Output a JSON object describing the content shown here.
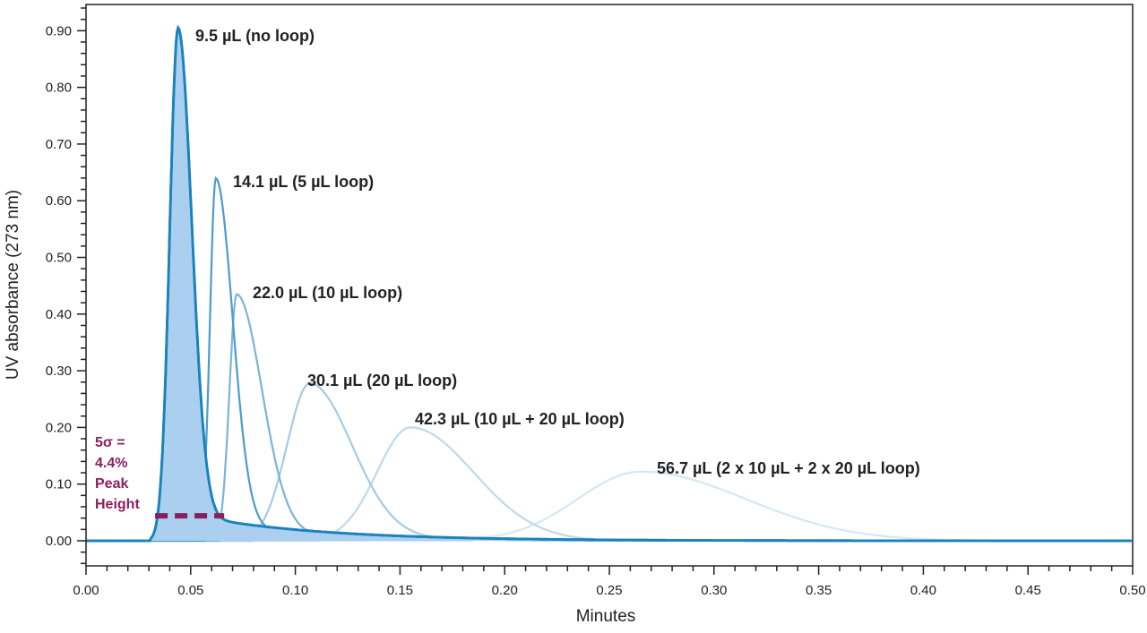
{
  "chart_data": {
    "type": "line",
    "title": "",
    "xlabel": "Minutes",
    "ylabel": "UV absorbance (273 nm)",
    "xlim": [
      0,
      0.5
    ],
    "ylim": [
      -0.04,
      0.96
    ],
    "x_ticks": [
      "0.00",
      "0.05",
      "0.10",
      "0.15",
      "0.20",
      "0.25",
      "0.30",
      "0.35",
      "0.40",
      "0.45",
      "0.50"
    ],
    "y_ticks": [
      "0.00",
      "0.10",
      "0.20",
      "0.30",
      "0.40",
      "0.50",
      "0.60",
      "0.70",
      "0.80",
      "0.90"
    ],
    "grid": false,
    "series": [
      {
        "name": "9.5 µL (no loop)",
        "peak_time": 0.044,
        "peak_height": 0.905,
        "start": 0.031,
        "sigma_left": 0.004,
        "sigma_right": 0.0065,
        "tail_amp": 0.05,
        "tail_tau": 0.06,
        "color": "#1a82bd",
        "filled": true
      },
      {
        "name": "14.1 µL (5 µL loop)",
        "peak_time": 0.062,
        "peak_height": 0.64,
        "start": 0.057,
        "sigma_left": 0.0028,
        "sigma_right": 0.008,
        "tail_amp": 0.03,
        "tail_tau": 0.05,
        "color": "#4a9cce"
      },
      {
        "name": "22.0 µL (10 µL loop)",
        "peak_time": 0.072,
        "peak_height": 0.435,
        "start": 0.064,
        "sigma_left": 0.0035,
        "sigma_right": 0.012,
        "tail_amp": 0.02,
        "tail_tau": 0.05,
        "color": "#7ab4d8"
      },
      {
        "name": "30.1 µL (20 µL loop)",
        "peak_time": 0.107,
        "peak_height": 0.278,
        "start": 0.08,
        "sigma_left": 0.011,
        "sigma_right": 0.02,
        "tail_amp": 0.01,
        "tail_tau": 0.05,
        "color": "#a5cae4"
      },
      {
        "name": "42.3 µL (10 µL + 20 µL loop)",
        "peak_time": 0.155,
        "peak_height": 0.2,
        "start": 0.112,
        "sigma_left": 0.016,
        "sigma_right": 0.03,
        "tail_amp": 0.0,
        "tail_tau": 0.05,
        "color": "#bed9ed"
      },
      {
        "name": "56.7 µL (2 x 10 µL + 2 x 20 µL loop)",
        "peak_time": 0.265,
        "peak_height": 0.122,
        "start": 0.185,
        "sigma_left": 0.03,
        "sigma_right": 0.05,
        "tail_amp": 0.0,
        "tail_tau": 0.05,
        "color": "#d6e7f4"
      }
    ],
    "annotations": {
      "sigma_lines": [
        "5σ =",
        "4.4%",
        "Peak",
        "Height"
      ],
      "sigma_level": 0.044,
      "sigma_range": [
        0.033,
        0.066
      ],
      "sigma_color": "#8b1f5e"
    }
  }
}
